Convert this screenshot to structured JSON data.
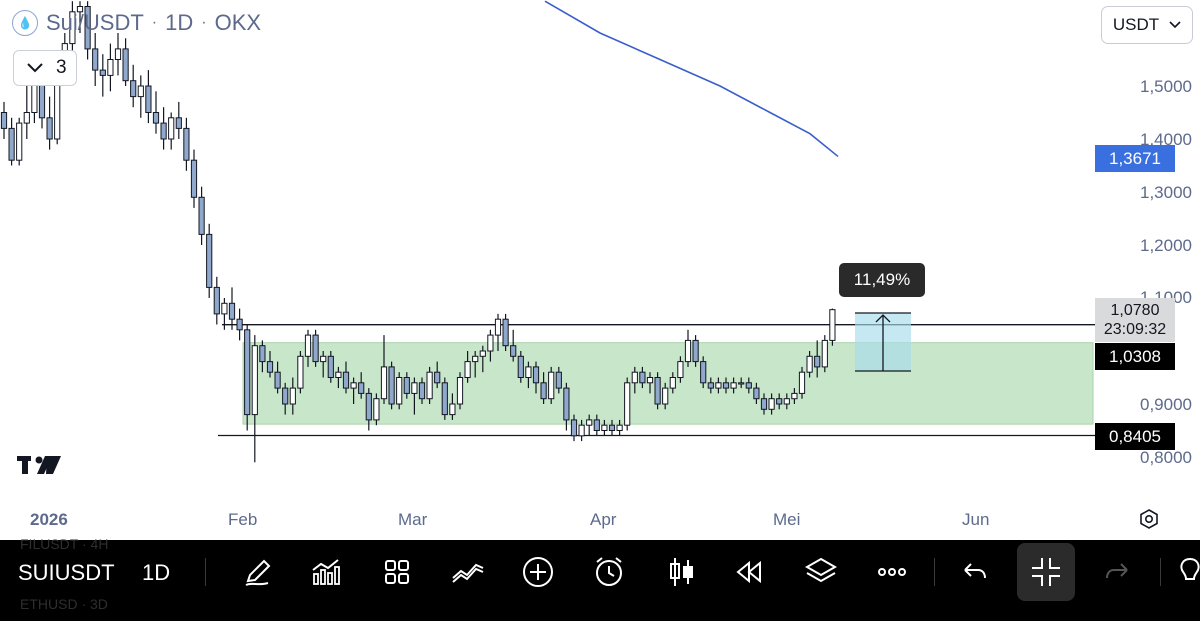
{
  "header": {
    "symbol": "Sui/USDT",
    "interval": "1D",
    "exchange": "OKX",
    "collapse_count": "3",
    "currency": "USDT"
  },
  "price_axis": {
    "labels": [
      "1,5000",
      "1,4000",
      "1,3000",
      "1,2000",
      "1,1000",
      "0,9000",
      "0,8000"
    ],
    "ma_badge": "1,3671",
    "last_price": "1,0780",
    "countdown": "23:09:32",
    "upper_level": "1,0308",
    "lower_level": "0,8405"
  },
  "time_axis": {
    "labels": [
      "2026",
      "Feb",
      "Mar",
      "Apr",
      "Mei",
      "Jun"
    ]
  },
  "measure": {
    "percent": "11,49%"
  },
  "colors": {
    "candle_fill": "#8fa8cc",
    "candle_stroke": "#131722",
    "ma_line": "#3a5fcd",
    "range_zone": "#c8e6c9",
    "measure_box": "#a8dcec",
    "ma_badge_bg": "#3a6fe0"
  },
  "toolbar": {
    "symbol": "SUIUSDT",
    "interval": "1D",
    "ghost_top": "FILUSDT · 4H",
    "ghost_bottom": "ETHUSD · 3D",
    "icons": [
      "pencil-icon",
      "indicators-icon",
      "grid-icon",
      "trend-line-icon",
      "plus-circle-icon",
      "alarm-icon",
      "candles-icon",
      "replay-icon",
      "layers-icon",
      "more-icon",
      "undo-icon",
      "collapse-icon",
      "redo-icon"
    ]
  },
  "chart_data": {
    "type": "candlestick",
    "symbol": "Sui/USDT",
    "interval": "1D",
    "exchange": "OKX",
    "price_range": [
      0.77,
      1.66
    ],
    "y_ticks": [
      0.8,
      0.9,
      1.0,
      1.1,
      1.2,
      1.3,
      1.4,
      1.5
    ],
    "levels": {
      "upper_box_top": 1.0308,
      "lower_support": 0.8405,
      "box_bottom": 0.862
    },
    "moving_average_last": 1.3671,
    "last_price": 1.078,
    "measure_percent": 11.49,
    "candles": [
      [
        1.45,
        1.47,
        1.4,
        1.42
      ],
      [
        1.42,
        1.44,
        1.35,
        1.36
      ],
      [
        1.36,
        1.44,
        1.35,
        1.43
      ],
      [
        1.43,
        1.5,
        1.4,
        1.45
      ],
      [
        1.45,
        1.56,
        1.43,
        1.52
      ],
      [
        1.52,
        1.54,
        1.42,
        1.44
      ],
      [
        1.44,
        1.48,
        1.38,
        1.4
      ],
      [
        1.4,
        1.55,
        1.39,
        1.53
      ],
      [
        1.53,
        1.6,
        1.5,
        1.58
      ],
      [
        1.58,
        1.66,
        1.56,
        1.64
      ],
      [
        1.64,
        1.66,
        1.6,
        1.65
      ],
      [
        1.65,
        1.66,
        1.55,
        1.57
      ],
      [
        1.57,
        1.6,
        1.5,
        1.53
      ],
      [
        1.53,
        1.56,
        1.48,
        1.52
      ],
      [
        1.52,
        1.58,
        1.49,
        1.55
      ],
      [
        1.55,
        1.6,
        1.52,
        1.57
      ],
      [
        1.57,
        1.59,
        1.5,
        1.51
      ],
      [
        1.51,
        1.54,
        1.46,
        1.48
      ],
      [
        1.48,
        1.52,
        1.44,
        1.5
      ],
      [
        1.5,
        1.53,
        1.43,
        1.45
      ],
      [
        1.45,
        1.49,
        1.41,
        1.43
      ],
      [
        1.43,
        1.46,
        1.38,
        1.4
      ],
      [
        1.4,
        1.45,
        1.38,
        1.44
      ],
      [
        1.44,
        1.47,
        1.4,
        1.42
      ],
      [
        1.42,
        1.44,
        1.34,
        1.36
      ],
      [
        1.36,
        1.38,
        1.27,
        1.29
      ],
      [
        1.29,
        1.31,
        1.2,
        1.22
      ],
      [
        1.22,
        1.24,
        1.1,
        1.12
      ],
      [
        1.12,
        1.14,
        1.05,
        1.07
      ],
      [
        1.07,
        1.1,
        1.04,
        1.09
      ],
      [
        1.09,
        1.12,
        1.04,
        1.06
      ],
      [
        1.06,
        1.08,
        1.02,
        1.04
      ],
      [
        1.04,
        1.05,
        0.85,
        0.88
      ],
      [
        0.88,
        1.03,
        0.79,
        1.01
      ],
      [
        1.01,
        1.02,
        0.96,
        0.98
      ],
      [
        0.98,
        1.0,
        0.95,
        0.96
      ],
      [
        0.96,
        0.98,
        0.92,
        0.93
      ],
      [
        0.93,
        0.94,
        0.88,
        0.9
      ],
      [
        0.9,
        0.95,
        0.88,
        0.93
      ],
      [
        0.93,
        1.0,
        0.92,
        0.99
      ],
      [
        0.99,
        1.04,
        0.97,
        1.03
      ],
      [
        1.03,
        1.04,
        0.97,
        0.98
      ],
      [
        0.98,
        1.0,
        0.95,
        0.99
      ],
      [
        0.99,
        1.0,
        0.94,
        0.95
      ],
      [
        0.95,
        0.97,
        0.93,
        0.96
      ],
      [
        0.96,
        0.98,
        0.92,
        0.93
      ],
      [
        0.93,
        0.95,
        0.9,
        0.94
      ],
      [
        0.94,
        0.96,
        0.91,
        0.92
      ],
      [
        0.92,
        0.93,
        0.85,
        0.87
      ],
      [
        0.87,
        0.92,
        0.86,
        0.91
      ],
      [
        0.91,
        1.03,
        0.9,
        0.97
      ],
      [
        0.97,
        0.98,
        0.89,
        0.9
      ],
      [
        0.9,
        0.96,
        0.89,
        0.95
      ],
      [
        0.95,
        0.96,
        0.91,
        0.92
      ],
      [
        0.92,
        0.95,
        0.88,
        0.94
      ],
      [
        0.94,
        0.95,
        0.9,
        0.91
      ],
      [
        0.91,
        0.97,
        0.9,
        0.96
      ],
      [
        0.96,
        0.98,
        0.93,
        0.94
      ],
      [
        0.94,
        0.95,
        0.87,
        0.88
      ],
      [
        0.88,
        0.92,
        0.87,
        0.9
      ],
      [
        0.9,
        0.96,
        0.89,
        0.95
      ],
      [
        0.95,
        1.0,
        0.94,
        0.98
      ],
      [
        0.98,
        1.0,
        0.95,
        0.99
      ],
      [
        0.99,
        1.01,
        0.96,
        1.0
      ],
      [
        1.0,
        1.04,
        0.98,
        1.03
      ],
      [
        1.03,
        1.07,
        1.0,
        1.06
      ],
      [
        1.06,
        1.07,
        1.0,
        1.01
      ],
      [
        1.01,
        1.04,
        0.98,
        0.99
      ],
      [
        0.99,
        1.0,
        0.94,
        0.95
      ],
      [
        0.95,
        0.98,
        0.93,
        0.97
      ],
      [
        0.97,
        0.98,
        0.92,
        0.94
      ],
      [
        0.94,
        0.96,
        0.9,
        0.91
      ],
      [
        0.91,
        0.97,
        0.9,
        0.96
      ],
      [
        0.96,
        0.97,
        0.92,
        0.93
      ],
      [
        0.93,
        0.94,
        0.85,
        0.87
      ],
      [
        0.87,
        0.88,
        0.83,
        0.84
      ],
      [
        0.84,
        0.87,
        0.83,
        0.86
      ],
      [
        0.86,
        0.88,
        0.84,
        0.87
      ],
      [
        0.87,
        0.88,
        0.84,
        0.85
      ],
      [
        0.85,
        0.87,
        0.84,
        0.86
      ],
      [
        0.86,
        0.87,
        0.84,
        0.85
      ],
      [
        0.85,
        0.87,
        0.84,
        0.86
      ],
      [
        0.86,
        0.95,
        0.85,
        0.94
      ],
      [
        0.94,
        0.97,
        0.92,
        0.96
      ],
      [
        0.96,
        0.97,
        0.93,
        0.94
      ],
      [
        0.94,
        0.96,
        0.92,
        0.95
      ],
      [
        0.95,
        0.96,
        0.89,
        0.9
      ],
      [
        0.9,
        0.94,
        0.89,
        0.93
      ],
      [
        0.93,
        0.96,
        0.92,
        0.95
      ],
      [
        0.95,
        0.99,
        0.94,
        0.98
      ],
      [
        0.98,
        1.04,
        0.97,
        1.02
      ],
      [
        1.02,
        1.03,
        0.97,
        0.98
      ],
      [
        0.98,
        0.99,
        0.93,
        0.94
      ],
      [
        0.94,
        0.95,
        0.92,
        0.93
      ],
      [
        0.93,
        0.95,
        0.92,
        0.94
      ],
      [
        0.94,
        0.95,
        0.92,
        0.93
      ],
      [
        0.93,
        0.95,
        0.92,
        0.94
      ],
      [
        0.94,
        0.95,
        0.93,
        0.94
      ],
      [
        0.94,
        0.95,
        0.92,
        0.93
      ],
      [
        0.93,
        0.94,
        0.9,
        0.91
      ],
      [
        0.91,
        0.92,
        0.88,
        0.89
      ],
      [
        0.89,
        0.92,
        0.88,
        0.91
      ],
      [
        0.91,
        0.92,
        0.89,
        0.9
      ],
      [
        0.9,
        0.92,
        0.89,
        0.91
      ],
      [
        0.91,
        0.93,
        0.9,
        0.92
      ],
      [
        0.92,
        0.97,
        0.91,
        0.96
      ],
      [
        0.96,
        1.0,
        0.95,
        0.99
      ],
      [
        0.99,
        1.02,
        0.95,
        0.97
      ],
      [
        0.97,
        1.03,
        0.96,
        1.02
      ],
      [
        1.02,
        1.08,
        1.01,
        1.078
      ]
    ],
    "ma_points": [
      [
        1.66,
        0
      ],
      [
        1.6,
        12
      ],
      [
        1.55,
        24
      ],
      [
        1.5,
        38
      ],
      [
        1.45,
        54
      ],
      [
        1.41,
        68
      ],
      [
        1.3671,
        80
      ]
    ]
  }
}
